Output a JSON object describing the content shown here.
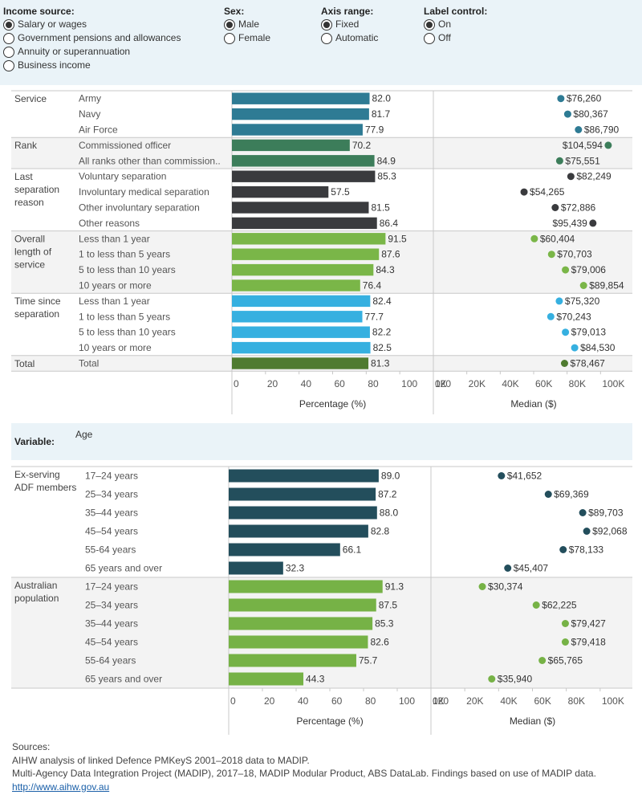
{
  "controls": {
    "income_source": {
      "title": "Income source:",
      "options": [
        "Salary or wages",
        "Government pensions and allowances",
        "Annuity or superannuation",
        "Business income"
      ],
      "selected": 0
    },
    "sex": {
      "title": "Sex:",
      "options": [
        "Male",
        "Female"
      ],
      "selected": 0
    },
    "axis_range": {
      "title": "Axis range:",
      "options": [
        "Fixed",
        "Automatic"
      ],
      "selected": 0
    },
    "label_control": {
      "title": "Label control:",
      "options": [
        "On",
        "Off"
      ],
      "selected": 0
    }
  },
  "variable_panel": {
    "label": "Variable:",
    "value": "Age"
  },
  "colors": {
    "service": "#2e7b94",
    "rank": "#3c7d5a",
    "separation": "#3a3b3e",
    "length": "#7ab648",
    "time": "#36b0e0",
    "total": "#4f7b30",
    "exserving": "#234e5c",
    "population": "#76b246",
    "shade": "#f3f3f3"
  },
  "chart_data": [
    {
      "type": "bar",
      "xlabel": "Percentage (%)",
      "xlim": [
        0,
        120
      ],
      "xticks": [
        "0",
        "20",
        "40",
        "60",
        "80",
        "100",
        "120"
      ],
      "groups": [
        {
          "name": "Service",
          "label_lines": [
            "Service"
          ],
          "color_key": "service",
          "shaded": false,
          "categories": [
            "Army",
            "Navy",
            "Air Force"
          ],
          "values": [
            82.0,
            81.7,
            77.9
          ]
        },
        {
          "name": "Rank",
          "label_lines": [
            "Rank"
          ],
          "color_key": "rank",
          "shaded": true,
          "categories": [
            " Commissioned officer",
            "All ranks other than commission.."
          ],
          "values": [
            70.2,
            84.9
          ]
        },
        {
          "name": "Last separation reason",
          "label_lines": [
            "Last",
            "separation",
            "reason"
          ],
          "color_key": "separation",
          "shaded": false,
          "categories": [
            "Voluntary separation",
            "Involuntary medical separation",
            "Other involuntary separation",
            "Other reasons"
          ],
          "values": [
            85.3,
            57.5,
            81.5,
            86.4
          ]
        },
        {
          "name": "Overall length of service",
          "label_lines": [
            "Overall",
            "length of",
            "service"
          ],
          "color_key": "length",
          "shaded": true,
          "categories": [
            "Less than 1 year",
            "1 to less than 5 years",
            "5 to less than 10 years",
            "10 years or more"
          ],
          "values": [
            91.5,
            87.6,
            84.3,
            76.4
          ]
        },
        {
          "name": "Time since separation",
          "label_lines": [
            "Time since",
            "separation"
          ],
          "color_key": "time",
          "shaded": false,
          "categories": [
            "Less than 1 year",
            "1 to less than 5 years",
            "5 to less than 10 years",
            "10 years or more"
          ],
          "values": [
            82.4,
            77.7,
            82.2,
            82.5
          ]
        },
        {
          "name": "Total",
          "label_lines": [
            "Total"
          ],
          "color_key": "total",
          "shaded": true,
          "categories": [
            "Total"
          ],
          "values": [
            81.3
          ]
        }
      ],
      "value_labels": [
        "82.0",
        "81.7",
        "77.9",
        "70.2",
        "84.9",
        "85.3",
        "57.5",
        "81.5",
        "86.4",
        "91.5",
        "87.6",
        "84.3",
        "76.4",
        "82.4",
        "77.7",
        "82.2",
        "82.5",
        "81.3"
      ]
    },
    {
      "type": "scatter",
      "xlabel": "Median ($)",
      "xlim": [
        0,
        120000
      ],
      "xticks": [
        "0K",
        "20K",
        "40K",
        "60K",
        "80K",
        "100K"
      ],
      "values": [
        76260,
        80367,
        86790,
        104594,
        75551,
        82249,
        54265,
        72886,
        95439,
        60404,
        70703,
        79006,
        89854,
        75320,
        70243,
        79013,
        84530,
        78467
      ],
      "value_labels": [
        "$76,260",
        "$80,367",
        "$86,790",
        "$104,594",
        "$75,551",
        "$82,249",
        "$54,265",
        "$72,886",
        "$95,439",
        "$60,404",
        "$70,703",
        "$79,006",
        "$89,854",
        "$75,320",
        "$70,243",
        "$79,013",
        "$84,530",
        "$78,467"
      ],
      "label_side": [
        "right",
        "right",
        "right",
        "left",
        "right",
        "right",
        "right",
        "right",
        "left",
        "right",
        "right",
        "right",
        "right",
        "right",
        "right",
        "right",
        "right",
        "right"
      ]
    },
    {
      "type": "bar",
      "xlabel": "Percentage (%)",
      "xlim": [
        0,
        120
      ],
      "xticks": [
        "0",
        "20",
        "40",
        "60",
        "80",
        "100",
        "120"
      ],
      "groups": [
        {
          "name": "Ex-serving ADF members",
          "label_lines": [
            "Ex-serving",
            "ADF members"
          ],
          "color_key": "exserving",
          "shaded": false,
          "categories": [
            "17–24 years",
            "25–34 years",
            "35–44 years",
            "45–54 years",
            "55-64 years",
            "65 years and over"
          ],
          "values": [
            89.0,
            87.2,
            88.0,
            82.8,
            66.1,
            32.3
          ]
        },
        {
          "name": "Australian population",
          "label_lines": [
            "Australian",
            "population"
          ],
          "color_key": "population",
          "shaded": true,
          "categories": [
            "17–24 years",
            "25–34 years",
            "35–44 years",
            "45–54 years",
            "55-64 years",
            "65 years and over"
          ],
          "values": [
            91.3,
            87.5,
            85.3,
            82.6,
            75.7,
            44.3
          ]
        }
      ],
      "value_labels": [
        "89.0",
        "87.2",
        "88.0",
        "82.8",
        "66.1",
        "32.3",
        "91.3",
        "87.5",
        "85.3",
        "82.6",
        "75.7",
        "44.3"
      ]
    },
    {
      "type": "scatter",
      "xlabel": "Median ($)",
      "xlim": [
        0,
        120000
      ],
      "xticks": [
        "0K",
        "20K",
        "40K",
        "60K",
        "80K",
        "100K"
      ],
      "values": [
        41652,
        69369,
        89703,
        92068,
        78133,
        45407,
        30374,
        62225,
        79427,
        79418,
        65765,
        35940
      ],
      "value_labels": [
        "$41,652",
        "$69,369",
        "$89,703",
        "$92,068",
        "$78,133",
        "$45,407",
        "$30,374",
        "$62,225",
        "$79,427",
        "$79,418",
        "$65,765",
        "$35,940"
      ],
      "label_side": [
        "right",
        "right",
        "right",
        "right",
        "right",
        "right",
        "right",
        "right",
        "right",
        "right",
        "right",
        "right"
      ]
    }
  ],
  "sources": {
    "heading": "Sources:",
    "lines": [
      "AIHW analysis of linked Defence PMKeyS 2001–2018 data to MADIP.",
      "Multi-Agency Data Integration Project (MADIP), 2017–18, MADIP Modular Product, ABS DataLab. Findings based on use of MADIP data."
    ],
    "link": "http://www.aihw.gov.au"
  }
}
